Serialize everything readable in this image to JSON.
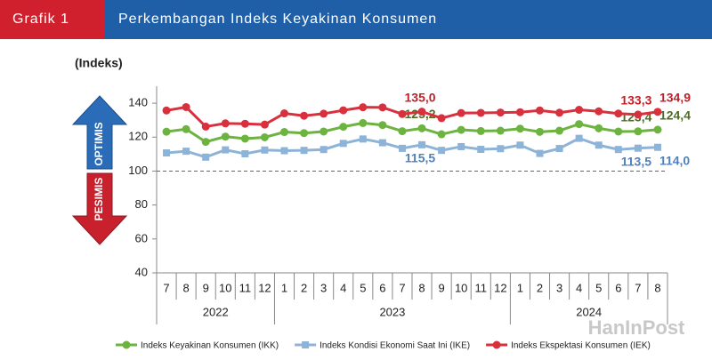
{
  "header": {
    "label": "Grafik 1",
    "title": "Perkembangan Indeks Keyakinan Konsumen"
  },
  "indicators": {
    "up": "OPTIMIS",
    "down": "PESIMIS"
  },
  "watermark": "HanInPost",
  "chart_data": {
    "type": "line",
    "y_label": "(Indeks)",
    "categories": [
      "7",
      "8",
      "9",
      "10",
      "11",
      "12",
      "1",
      "2",
      "3",
      "4",
      "5",
      "6",
      "7",
      "8",
      "9",
      "10",
      "11",
      "12",
      "1",
      "2",
      "3",
      "4",
      "5",
      "6",
      "7",
      "8"
    ],
    "years": [
      "2022",
      "2023",
      "2024"
    ],
    "ylim": [
      40,
      150
    ],
    "yticks": [
      40,
      60,
      80,
      100,
      120,
      140
    ],
    "reference_line": 100,
    "series": [
      {
        "name": "Indeks Keyakinan Konsumen (IKK)",
        "color": "#6cb33f",
        "label_color": "#4f6b22",
        "values": [
          123.2,
          124.7,
          117.2,
          120.3,
          119.1,
          119.9,
          123.0,
          122.4,
          123.3,
          126.1,
          128.3,
          127.1,
          123.5,
          125.2,
          121.7,
          124.3,
          123.6,
          123.8,
          125.0,
          123.1,
          123.8,
          127.7,
          125.2,
          123.3,
          123.4,
          124.4
        ],
        "value_labels": [
          null,
          null,
          null,
          null,
          null,
          null,
          null,
          null,
          null,
          null,
          null,
          null,
          null,
          "125,2",
          null,
          null,
          null,
          null,
          null,
          null,
          null,
          null,
          null,
          null,
          "123,4",
          "124,4"
        ]
      },
      {
        "name": "Indeks Kondisi Ekonomi Saat Ini (IKE)",
        "color": "#8db4d8",
        "label_color": "#4f81bd",
        "values": [
          110.7,
          111.7,
          108.2,
          112.5,
          110.2,
          112.4,
          112.0,
          112.2,
          112.7,
          116.3,
          118.9,
          116.7,
          113.4,
          115.5,
          112.2,
          114.4,
          112.8,
          113.2,
          115.3,
          110.4,
          113.3,
          119.3,
          115.3,
          112.7,
          113.5,
          114.0
        ],
        "value_labels": [
          null,
          null,
          null,
          null,
          null,
          null,
          null,
          null,
          null,
          null,
          null,
          null,
          null,
          "115,5",
          null,
          null,
          null,
          null,
          null,
          null,
          null,
          null,
          null,
          null,
          "113,5",
          "114,0"
        ]
      },
      {
        "name": "Indeks Ekspektasi Konsumen (IEK)",
        "color": "#d9303e",
        "label_color": "#c0202a",
        "values": [
          135.7,
          137.7,
          126.2,
          128.1,
          127.9,
          127.4,
          134.0,
          132.6,
          133.8,
          135.8,
          137.6,
          137.5,
          133.6,
          135.0,
          131.2,
          134.2,
          134.3,
          134.5,
          134.7,
          135.7,
          134.4,
          136.1,
          135.2,
          133.9,
          133.3,
          134.9
        ],
        "value_labels": [
          null,
          null,
          null,
          null,
          null,
          null,
          null,
          null,
          null,
          null,
          null,
          null,
          null,
          "135,0",
          null,
          null,
          null,
          null,
          null,
          null,
          null,
          null,
          null,
          null,
          "133,3",
          "134,9"
        ]
      }
    ]
  }
}
